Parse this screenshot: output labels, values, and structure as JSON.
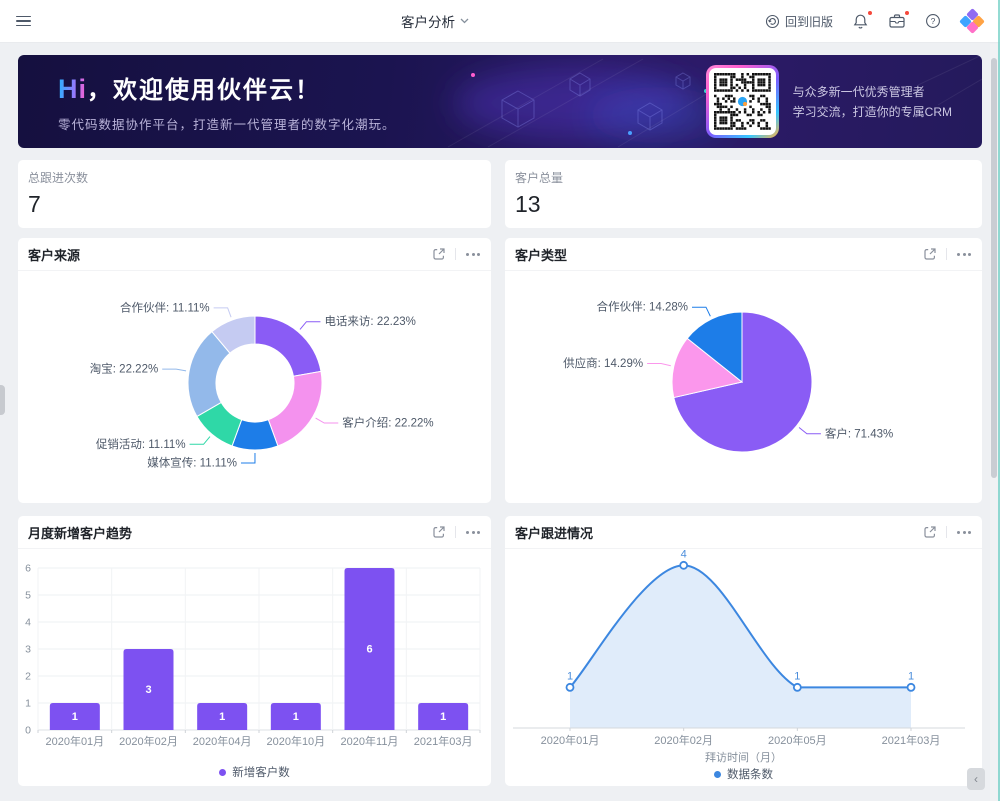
{
  "topbar": {
    "title": "客户分析",
    "back_to_old": "回到旧版"
  },
  "banner": {
    "greeting_highlight": "Hi",
    "greeting_rest": "，欢迎使用伙伴云！",
    "subtitle": "零代码数据协作平台，打造新一代管理者的数字化潮玩。",
    "qr_text_line1": "与众多新一代优秀管理者",
    "qr_text_line2": "学习交流，打造你的专属CRM"
  },
  "stats": [
    {
      "label": "总跟进次数",
      "value": "7"
    },
    {
      "label": "客户总量",
      "value": "13"
    }
  ],
  "chart_data": [
    {
      "id": "source",
      "type": "donut",
      "title": "客户来源",
      "slices": [
        {
          "label": "电话来访",
          "value": 22.23,
          "text": "电话来访: 22.23%",
          "color": "#8a5cf5"
        },
        {
          "label": "客户介绍",
          "value": 22.22,
          "text": "客户介绍: 22.22%",
          "color": "#f492ee"
        },
        {
          "label": "媒体宣传",
          "value": 11.11,
          "text": "媒体宣传: 11.11%",
          "color": "#1d7de8"
        },
        {
          "label": "促销活动",
          "value": 11.11,
          "text": "促销活动: 11.11%",
          "color": "#2fd8a7"
        },
        {
          "label": "淘宝",
          "value": 22.22,
          "text": "淘宝: 22.22%",
          "color": "#93b9ea"
        },
        {
          "label": "合作伙伴",
          "value": 11.11,
          "text": "合作伙伴: 11.11%",
          "color": "#c5cbf2"
        }
      ]
    },
    {
      "id": "type",
      "type": "pie",
      "title": "客户类型",
      "slices": [
        {
          "label": "客户",
          "value": 71.43,
          "text": "客户: 71.43%",
          "color": "#8a5cf5"
        },
        {
          "label": "供应商",
          "value": 14.29,
          "text": "供应商: 14.29%",
          "color": "#fb97ec"
        },
        {
          "label": "合作伙伴",
          "value": 14.28,
          "text": "合作伙伴: 14.28%",
          "color": "#1d7de8"
        }
      ]
    },
    {
      "id": "trend",
      "type": "bar",
      "title": "月度新增客户趋势",
      "categories": [
        "2020年01月",
        "2020年02月",
        "2020年04月",
        "2020年10月",
        "2020年11月",
        "2021年03月"
      ],
      "values": [
        1,
        3,
        1,
        1,
        6,
        1
      ],
      "ylim": [
        0,
        6
      ],
      "y_ticks": [
        0,
        1,
        2,
        3,
        4,
        5,
        6
      ],
      "grid": true,
      "legend": "新增客户数",
      "bar_color": "#7d51f1"
    },
    {
      "id": "follow",
      "type": "line",
      "title": "客户跟进情况",
      "smooth": true,
      "x": [
        "2020年01月",
        "2020年02月",
        "2020年05月",
        "2021年03月"
      ],
      "values": [
        1,
        4,
        1,
        1
      ],
      "xlabel": "拜访时间（月）",
      "legend": "数据条数",
      "line_color": "#3c87e0",
      "area_color": "rgba(60,135,224,0.16)",
      "label_color": "#4a8ddb"
    }
  ]
}
